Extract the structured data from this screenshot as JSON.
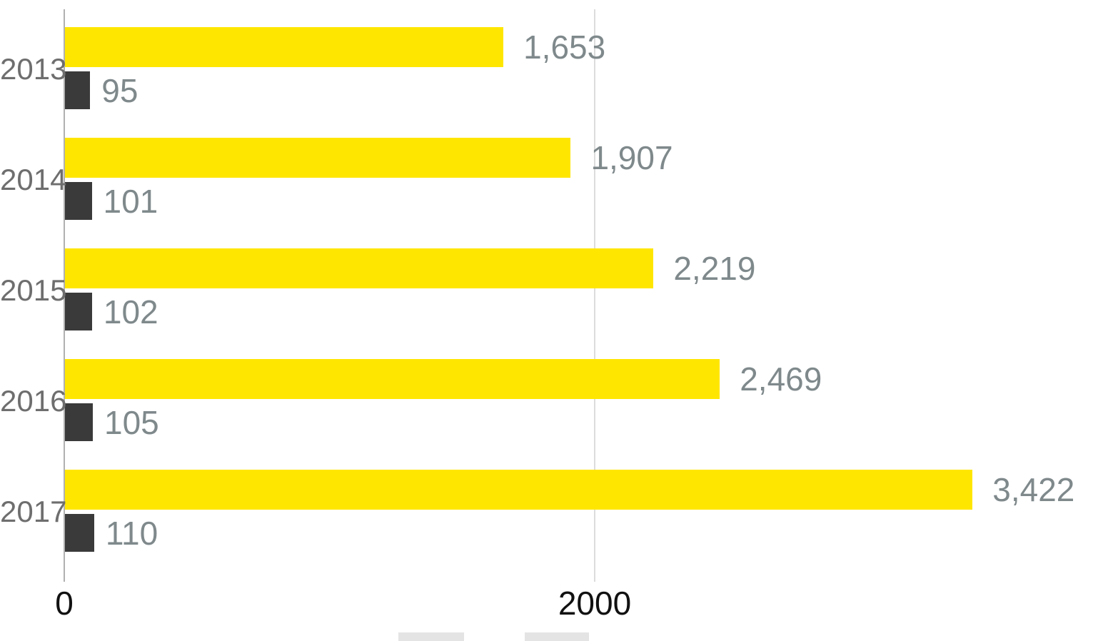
{
  "chart_data": {
    "type": "bar",
    "orientation": "horizontal",
    "title": "",
    "categories": [
      "2013",
      "2014",
      "2015",
      "2016",
      "2017"
    ],
    "series": [
      {
        "name": "yellow",
        "color": "#FFE600",
        "values": [
          1653,
          1907,
          2219,
          2469,
          3422
        ],
        "labels": [
          "1,653",
          "1,907",
          "2,219",
          "2,469",
          "3,422"
        ]
      },
      {
        "name": "dark",
        "color": "#3A3A3A",
        "values": [
          95,
          101,
          102,
          105,
          110
        ],
        "labels": [
          "95",
          "101",
          "102",
          "105",
          "110"
        ]
      }
    ],
    "x_axis": {
      "range": [
        0,
        3600
      ],
      "ticks": [
        {
          "value": 0,
          "label": "0"
        },
        {
          "value": 2000,
          "label": "2000"
        }
      ],
      "gridlines": [
        2000
      ]
    },
    "legend": {
      "position": "bottom",
      "partially_visible": true,
      "swatch_color": "#e4e4e4"
    },
    "colors": {
      "value_label": "#7f898c",
      "category_label": "#6e6e6e",
      "tick_label": "#111111",
      "axis_line": "#b0b0b0",
      "gridline": "#dcdcdc",
      "background": "#ffffff"
    }
  }
}
